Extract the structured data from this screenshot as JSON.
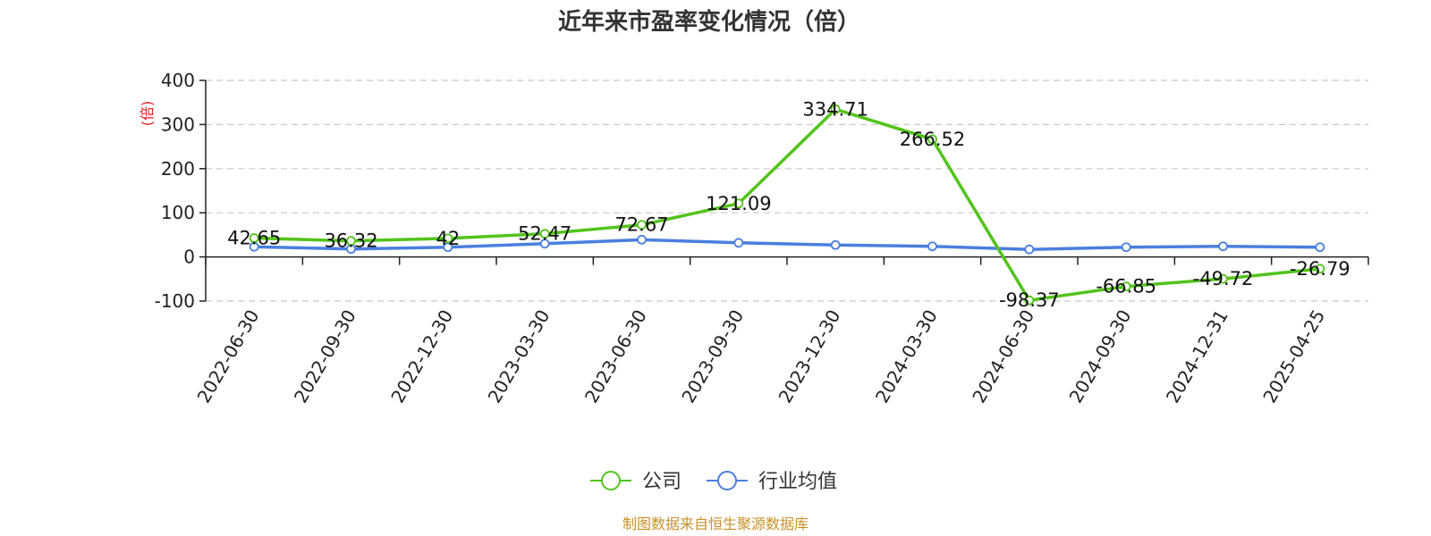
{
  "chart_data": {
    "type": "line",
    "title": "近年来市盈率变化情况（倍）",
    "ylabel": "(倍)",
    "xlabel": "",
    "categories": [
      "2022-06-30",
      "2022-09-30",
      "2022-12-30",
      "2023-03-30",
      "2023-06-30",
      "2023-09-30",
      "2023-12-30",
      "2024-03-30",
      "2024-06-30",
      "2024-09-30",
      "2024-12-31",
      "2025-04-25"
    ],
    "ylim": [
      -100,
      400
    ],
    "yticks": [
      400,
      300,
      200,
      100,
      0,
      -100
    ],
    "ytick_labels": [
      "400",
      "300",
      "200",
      "100",
      "0",
      "-100"
    ],
    "grid": true,
    "legend_position": "bottom",
    "series": [
      {
        "name": "公司",
        "color": "#52c41a",
        "values": [
          42.65,
          36.32,
          42,
          52.47,
          72.67,
          121.09,
          334.71,
          266.52,
          -98.37,
          -66.85,
          -49.72,
          -26.79
        ],
        "labels": [
          "42.65",
          "36.32",
          "42",
          "52.47",
          "72.67",
          "121.09",
          "334.71",
          "266.52",
          "-98.37",
          "-66.85",
          "-49.72",
          "-26.79"
        ]
      },
      {
        "name": "行业均值",
        "color": "#4a7fdf",
        "values": [
          23,
          18,
          22,
          30,
          39,
          32,
          27,
          24,
          17,
          22,
          24,
          22
        ]
      }
    ]
  },
  "source": "制图数据来自恒生聚源数据库"
}
